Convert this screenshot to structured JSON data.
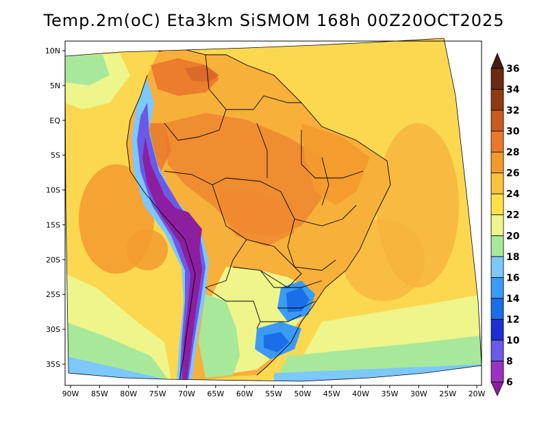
{
  "title": "Temp.2m(oC) Eta3km SiSMOM 168h 00Z20OCT2025",
  "map": {
    "lon_labels": [
      "90W",
      "85W",
      "80W",
      "75W",
      "70W",
      "65W",
      "60W",
      "55W",
      "50W",
      "45W",
      "40W",
      "35W",
      "30W",
      "25W",
      "20W"
    ],
    "lat_labels": [
      "10N",
      "5N",
      "EQ",
      "5S",
      "10S",
      "15S",
      "20S",
      "25S",
      "30S",
      "35S"
    ]
  },
  "colorbar": {
    "levels": [
      "6",
      "8",
      "10",
      "12",
      "14",
      "16",
      "18",
      "20",
      "22",
      "24",
      "26",
      "28",
      "30",
      "32",
      "34",
      "36"
    ],
    "colors": [
      "#8c1ea0",
      "#9b33c2",
      "#6a5ae6",
      "#1e2fd2",
      "#1b6ee8",
      "#3a9af5",
      "#7cc8ff",
      "#a8e89a",
      "#eef58a",
      "#ffe24a",
      "#fac23a",
      "#f39a2e",
      "#e9782c",
      "#c95a20",
      "#8f3a14",
      "#6b2a12",
      "#4a1a10"
    ]
  }
}
